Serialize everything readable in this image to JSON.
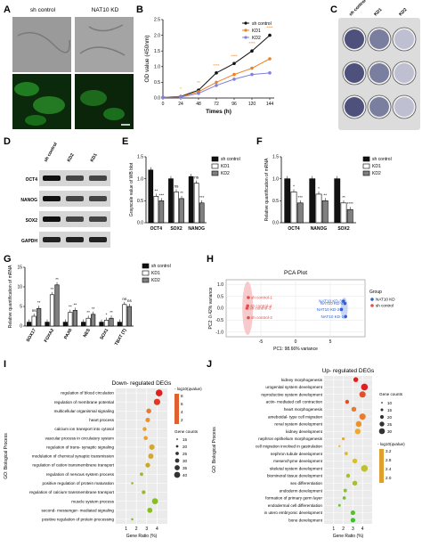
{
  "figure": {
    "panel_labels": {
      "A": "A",
      "B": "B",
      "C": "C",
      "D": "D",
      "E": "E",
      "F": "F",
      "G": "G",
      "H": "H",
      "I": "I",
      "J": "J"
    },
    "colors": {
      "sh_control": "#111111",
      "kd1": "#f08020",
      "kd2": "#8080e0",
      "bar_black": "#111111",
      "bar_white": "#ffffff",
      "bar_gray": "#808080",
      "pca_red": "#e05050",
      "pca_blue": "#3060d0",
      "micro_bg": "#9a9a9a",
      "fluor_bg": "#0b2a0b"
    },
    "panel_a": {
      "headers": [
        "sh control",
        "NAT10 KD"
      ]
    },
    "panel_c": {
      "headers": [
        "sh control",
        "KD1",
        "KD2"
      ]
    },
    "panel_d": {
      "headers": [
        "sh control",
        "KD2",
        "KD1"
      ],
      "rows": [
        "OCT4",
        "NANOG",
        "SOX2",
        "GAPDH"
      ]
    }
  },
  "chart_data": [
    {
      "id": "B",
      "type": "line",
      "xlabel": "Times (h)",
      "ylabel": "OD value (450nm)",
      "x": [
        0,
        24,
        48,
        72,
        96,
        120,
        144
      ],
      "xlim": [
        0,
        150
      ],
      "ylim": [
        0,
        2.5
      ],
      "yticks": [
        "0.0",
        "0.5",
        "1.0",
        "1.5",
        "2.0",
        "2.5"
      ],
      "xticks": [
        "0",
        "24",
        "48",
        "72",
        "96",
        "120",
        "144"
      ],
      "series": [
        {
          "name": "sh control",
          "values": [
            0.02,
            0.05,
            0.25,
            0.8,
            1.1,
            1.5,
            2.0
          ]
        },
        {
          "name": "KD1",
          "values": [
            0.02,
            0.04,
            0.2,
            0.5,
            0.75,
            0.95,
            1.25
          ]
        },
        {
          "name": "KD2",
          "values": [
            0.02,
            0.03,
            0.15,
            0.4,
            0.6,
            0.75,
            0.8
          ]
        }
      ],
      "sig_marks": [
        "*",
        "**",
        "****",
        "****",
        "****",
        "****"
      ]
    },
    {
      "id": "E",
      "type": "bar",
      "ylabel": "Grayscale value of WB blot",
      "categories": [
        "OCT4",
        "SOX2",
        "NANOG"
      ],
      "ylim": [
        0,
        1.5
      ],
      "yticks": [
        "0.0",
        "0.5",
        "1.0",
        "1.5"
      ],
      "series": [
        {
          "name": "sh control",
          "values": [
            1.2,
            1.0,
            1.05
          ]
        },
        {
          "name": "KD1",
          "values": [
            0.6,
            0.7,
            0.9
          ]
        },
        {
          "name": "KD2",
          "values": [
            0.5,
            0.55,
            0.45
          ]
        }
      ],
      "sig_marks": [
        [
          "**",
          "***"
        ],
        [
          "ns",
          "**"
        ],
        [
          "ns",
          "***"
        ]
      ]
    },
    {
      "id": "F",
      "type": "bar",
      "ylabel": "Relative quantification of mRNA",
      "categories": [
        "OCT4",
        "NANOG",
        "SOX2"
      ],
      "ylim": [
        0,
        1.5
      ],
      "yticks": [
        "0.0",
        "0.5",
        "1.0",
        "1.5"
      ],
      "series": [
        {
          "name": "sh control",
          "values": [
            1.0,
            1.0,
            1.0
          ]
        },
        {
          "name": "KD1",
          "values": [
            0.7,
            0.65,
            0.45
          ]
        },
        {
          "name": "KD2",
          "values": [
            0.45,
            0.5,
            0.3
          ]
        }
      ],
      "sig_marks": [
        [
          "*",
          "***"
        ],
        [
          "*",
          "**"
        ],
        [
          "**",
          "****"
        ]
      ]
    },
    {
      "id": "G",
      "type": "bar",
      "ylabel": "Relative quantification of mRNA",
      "categories": [
        "SOX17",
        "FOXA2",
        "PAX6",
        "NES",
        "SOX1",
        "TBXT (T)"
      ],
      "ylim": [
        0,
        15
      ],
      "yticks": [
        "0",
        "5",
        "10",
        "15"
      ],
      "series": [
        {
          "name": "sh control",
          "values": [
            1,
            1,
            1,
            1,
            1,
            1
          ]
        },
        {
          "name": "KD1",
          "values": [
            2.5,
            8,
            3.5,
            2,
            1.5,
            5.5
          ]
        },
        {
          "name": "KD2",
          "values": [
            4.5,
            10.5,
            4,
            3,
            2,
            5
          ]
        }
      ],
      "sig_marks": [
        [
          "ns",
          "**"
        ],
        [
          "**",
          "**"
        ],
        [
          "**",
          "**"
        ],
        [
          "**",
          "**"
        ],
        [
          "*",
          "**"
        ],
        [
          "ns",
          "ns"
        ]
      ]
    },
    {
      "id": "H",
      "type": "scatter",
      "title": "PCA Plot",
      "xlabel": "PC1: 98.66% variance",
      "ylabel": "PC2: 0.42% variance",
      "xlim": [
        -10,
        10
      ],
      "ylim": [
        -1.2,
        1.2
      ],
      "xticks": [
        "-5",
        "0",
        "5"
      ],
      "yticks": [
        "-1.0",
        "-0.5",
        "0.0",
        "0.5",
        "1.0"
      ],
      "legend_title": "Group",
      "series": [
        {
          "name": "NAT10 KD",
          "points": [
            {
              "label": "NAT10 KD-1",
              "x": 7.2,
              "y": -0.35
            },
            {
              "label": "NAT10 KD-2",
              "x": 6.6,
              "y": -0.05
            },
            {
              "label": "NAT10 KD-3",
              "x": 6.9,
              "y": 0.3
            },
            {
              "label": "NAT10 KD-4",
              "x": 7.1,
              "y": 0.2
            }
          ]
        },
        {
          "name": "sh control",
          "points": [
            {
              "label": "sh control-1",
              "x": -6.8,
              "y": 0.45
            },
            {
              "label": "sh control-2",
              "x": -6.8,
              "y": -0.4
            },
            {
              "label": "sh control-3",
              "x": -7.0,
              "y": 0.0
            },
            {
              "label": "sh control-4",
              "x": -6.9,
              "y": 0.1
            }
          ]
        }
      ]
    },
    {
      "id": "I",
      "type": "scatter",
      "title": "Down- regulated DEGs",
      "xlabel": "Gene Ratio (%)",
      "ylabel": "GO: Biological Process",
      "xlim": [
        0,
        5
      ],
      "xticks": [
        "1",
        "2",
        "3",
        "4"
      ],
      "color_legend_title": "- log10(qvalue)",
      "color_legend_ticks": [
        "8",
        "6",
        "4",
        "2"
      ],
      "size_legend_title": "Gene counts",
      "size_legend_ticks": [
        "15",
        "20",
        "25",
        "30",
        "35",
        "40"
      ],
      "terms": [
        {
          "term": "regulation of blood circulation",
          "ratio": 4.2,
          "count": 40,
          "q": 7.5
        },
        {
          "term": "regulation of membrane potential",
          "ratio": 4.0,
          "count": 38,
          "q": 7.0
        },
        {
          "term": "multicellular organismal signaling",
          "ratio": 3.2,
          "count": 30,
          "q": 5.5
        },
        {
          "term": "heart process",
          "ratio": 3.1,
          "count": 28,
          "q": 5.0
        },
        {
          "term": "calcium ion transport into cytosol",
          "ratio": 2.8,
          "count": 25,
          "q": 4.5
        },
        {
          "term": "vascular process in circulatory system",
          "ratio": 2.9,
          "count": 26,
          "q": 4.5
        },
        {
          "term": "regulation of trans- synaptic signaling",
          "ratio": 3.5,
          "count": 33,
          "q": 4.0
        },
        {
          "term": "modulation of chemical synaptic transmission",
          "ratio": 3.4,
          "count": 32,
          "q": 4.0
        },
        {
          "term": "regulation of cation transmembrane transport",
          "ratio": 3.1,
          "count": 29,
          "q": 3.5
        },
        {
          "term": "regulation of nervous system process",
          "ratio": 2.5,
          "count": 22,
          "q": 3.0
        },
        {
          "term": "positive regulation of protein maturation",
          "ratio": 1.6,
          "count": 16,
          "q": 2.5
        },
        {
          "term": "regulation of calcium transmembrane transport",
          "ratio": 2.7,
          "count": 24,
          "q": 2.5
        },
        {
          "term": "muscle system process",
          "ratio": 3.8,
          "count": 36,
          "q": 2.0
        },
        {
          "term": "second- messenger- mediated signaling",
          "ratio": 3.3,
          "count": 31,
          "q": 2.0
        },
        {
          "term": "positive regulation of protein processing",
          "ratio": 1.6,
          "count": 16,
          "q": 1.8
        }
      ]
    },
    {
      "id": "J",
      "type": "scatter",
      "title": "Up- regulated DEGs",
      "xlabel": "Gene Ratio (%)",
      "ylabel": "GO: Biological Process",
      "xlim": [
        0,
        5
      ],
      "xticks": [
        "1",
        "2",
        "3",
        "4"
      ],
      "color_legend_title": "- log10(qvalue)",
      "color_legend_ticks": [
        "3.2",
        "2.8",
        "2.4",
        "2.0"
      ],
      "size_legend_title": "Gene counts",
      "size_legend_ticks": [
        "10",
        "15",
        "20",
        "25",
        "30"
      ],
      "terms": [
        {
          "term": "kidney morphogenesis",
          "ratio": 3.3,
          "count": 22,
          "q": 3.2
        },
        {
          "term": "urogenital system development",
          "ratio": 4.2,
          "count": 30,
          "q": 3.2
        },
        {
          "term": "reproductive system development",
          "ratio": 4.0,
          "count": 28,
          "q": 3.0
        },
        {
          "term": "actin- mediated cell contraction",
          "ratio": 2.4,
          "count": 18,
          "q": 3.0
        },
        {
          "term": "heart morphogenesis",
          "ratio": 3.1,
          "count": 22,
          "q": 2.8
        },
        {
          "term": "ameboidal- type cell migration",
          "ratio": 4.0,
          "count": 28,
          "q": 2.8
        },
        {
          "term": "renal system development",
          "ratio": 3.6,
          "count": 26,
          "q": 2.7
        },
        {
          "term": "kidney development",
          "ratio": 3.5,
          "count": 25,
          "q": 2.6
        },
        {
          "term": "nephron epithelium morphogenesis",
          "ratio": 2.0,
          "count": 14,
          "q": 2.6
        },
        {
          "term": "cell migration involved in gastrulation",
          "ratio": 1.6,
          "count": 10,
          "q": 2.5
        },
        {
          "term": "nephron tubule development",
          "ratio": 2.3,
          "count": 16,
          "q": 2.4
        },
        {
          "term": "mesenchyme development",
          "ratio": 3.2,
          "count": 22,
          "q": 2.4
        },
        {
          "term": "skeletal system development",
          "ratio": 4.2,
          "count": 30,
          "q": 2.3
        },
        {
          "term": "biomineral tissue development",
          "ratio": 2.5,
          "count": 18,
          "q": 2.2
        },
        {
          "term": "sex differentiation",
          "ratio": 3.2,
          "count": 22,
          "q": 2.2
        },
        {
          "term": "endoderm development",
          "ratio": 2.2,
          "count": 16,
          "q": 2.1
        },
        {
          "term": "formation of primary germ layer",
          "ratio": 2.1,
          "count": 15,
          "q": 2.0
        },
        {
          "term": "endodermal cell differentiation",
          "ratio": 1.6,
          "count": 12,
          "q": 2.0
        },
        {
          "term": "in utero embryonic development",
          "ratio": 3.0,
          "count": 21,
          "q": 1.9
        },
        {
          "term": "bone development",
          "ratio": 3.0,
          "count": 21,
          "q": 1.8
        }
      ]
    }
  ]
}
